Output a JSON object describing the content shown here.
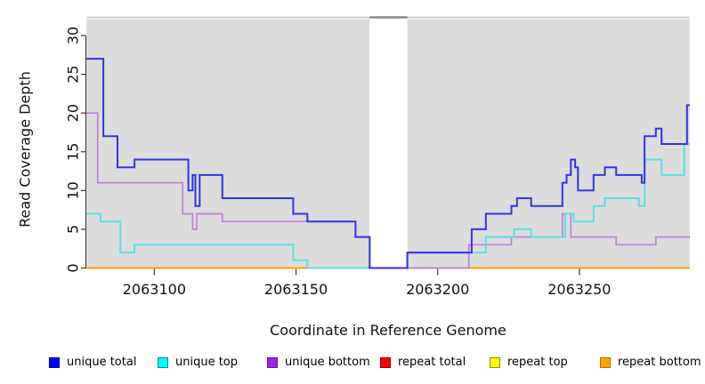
{
  "chart_data": {
    "type": "line",
    "step": true,
    "title": "",
    "xlabel": "Coordinate in Reference Genome",
    "ylabel": "Read Coverage Depth",
    "xlim": [
      2063076,
      2063289
    ],
    "ylim": [
      0,
      32
    ],
    "xticks": [
      2063100,
      2063150,
      2063200,
      2063250
    ],
    "yticks": [
      0,
      5,
      10,
      15,
      20,
      25,
      30
    ],
    "grid": false,
    "plot_background_color": "#DCDCDC",
    "background_regions": [
      {
        "start": 2063076,
        "end": 2063176
      },
      {
        "start": 2063189.3,
        "end": 2063289
      }
    ],
    "coverage_gap": {
      "start": 2063176,
      "end": 2063189.3
    },
    "top_marker": {
      "full_span_color": "#C8C8C8",
      "gap_segment_color": "#8A8A8A"
    },
    "series": [
      {
        "name": "repeat total",
        "color": "#FF0000",
        "line_width": 2,
        "points": [
          [
            2063076,
            0
          ]
        ]
      },
      {
        "name": "repeat top",
        "color": "#FFFF00",
        "line_width": 2,
        "points": [
          [
            2063076,
            0
          ]
        ]
      },
      {
        "name": "repeat bottom",
        "color": "#FFA000",
        "line_width": 2,
        "points": [
          [
            2063076,
            0
          ]
        ]
      },
      {
        "name": "unique bottom",
        "color": "#C07FD8",
        "line_width": 1.7,
        "points": [
          [
            2063076,
            20
          ],
          [
            2063080,
            11
          ],
          [
            2063110,
            7
          ],
          [
            2063113.5,
            5
          ],
          [
            2063115,
            7
          ],
          [
            2063124,
            6
          ],
          [
            2063171,
            4
          ],
          [
            2063176,
            0
          ],
          [
            2063211,
            3
          ],
          [
            2063226,
            4
          ],
          [
            2063244,
            7
          ],
          [
            2063247,
            4
          ],
          [
            2063263,
            3
          ],
          [
            2063277,
            4
          ]
        ]
      },
      {
        "name": "unique top",
        "color": "#5CE0E4",
        "line_width": 2,
        "points": [
          [
            2063076,
            7
          ],
          [
            2063081,
            6
          ],
          [
            2063088,
            2
          ],
          [
            2063093,
            3
          ],
          [
            2063149,
            1
          ],
          [
            2063154,
            0
          ],
          [
            2063189.3,
            2
          ],
          [
            2063217,
            4
          ],
          [
            2063227,
            5
          ],
          [
            2063233,
            4
          ],
          [
            2063245,
            7
          ],
          [
            2063248,
            6
          ],
          [
            2063255,
            8
          ],
          [
            2063259,
            9
          ],
          [
            2063271,
            8
          ],
          [
            2063273,
            14
          ],
          [
            2063279,
            12
          ],
          [
            2063287,
            16
          ]
        ]
      },
      {
        "name": "unique total",
        "color": "#3232E8",
        "line_width": 2,
        "points": [
          [
            2063076,
            27
          ],
          [
            2063082,
            17
          ],
          [
            2063087,
            13
          ],
          [
            2063093,
            14
          ],
          [
            2063112,
            10
          ],
          [
            2063113.5,
            12
          ],
          [
            2063114.5,
            8
          ],
          [
            2063116,
            12
          ],
          [
            2063124,
            9
          ],
          [
            2063149,
            7
          ],
          [
            2063154,
            6
          ],
          [
            2063171,
            4
          ],
          [
            2063176,
            0
          ],
          [
            2063189.3,
            2
          ],
          [
            2063212,
            5
          ],
          [
            2063217,
            7
          ],
          [
            2063226,
            8
          ],
          [
            2063228,
            9
          ],
          [
            2063233,
            8
          ],
          [
            2063244,
            11
          ],
          [
            2063245.5,
            12
          ],
          [
            2063247,
            14
          ],
          [
            2063248.5,
            13
          ],
          [
            2063249.5,
            10
          ],
          [
            2063255,
            12
          ],
          [
            2063259,
            13
          ],
          [
            2063263,
            12
          ],
          [
            2063272,
            11
          ],
          [
            2063273,
            17
          ],
          [
            2063277,
            18
          ],
          [
            2063279,
            16
          ],
          [
            2063288,
            21
          ]
        ]
      }
    ],
    "legend_position": "bottom"
  },
  "legend": {
    "items": [
      {
        "label": "unique total",
        "fill": "#0000FF",
        "border": "#00008B"
      },
      {
        "label": "unique top",
        "fill": "#00FFFF",
        "border": "#008B8B"
      },
      {
        "label": "unique bottom",
        "fill": "#A020F0",
        "border": "#5D1A8B"
      },
      {
        "label": "repeat total",
        "fill": "#FF0000",
        "border": "#8B0000"
      },
      {
        "label": "repeat top",
        "fill": "#FFFF00",
        "border": "#8B8B00"
      },
      {
        "label": "repeat bottom",
        "fill": "#FFA500",
        "border": "#B36B00"
      }
    ]
  }
}
